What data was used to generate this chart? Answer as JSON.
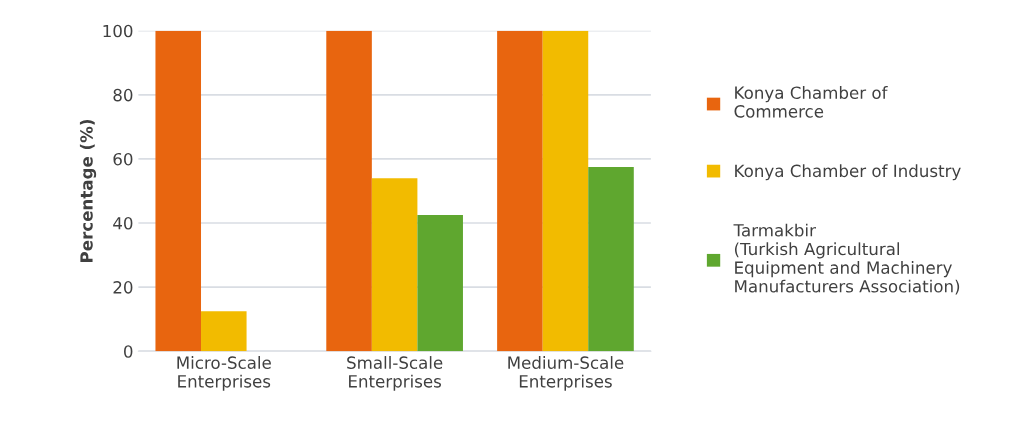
{
  "chart_data": {
    "type": "bar",
    "ylabel": "Percentage (%)",
    "categories": [
      "Micro-Scale\nEnterprises",
      "Small-Scale\nEnterprises",
      "Medium-Scale\nEnterprises"
    ],
    "series": [
      {
        "name": "Konya Chamber of\nCommerce",
        "color": "#e8650f",
        "values": [
          100,
          100,
          100
        ]
      },
      {
        "name": "Konya Chamber of Industry",
        "color": "#f2bb00",
        "values": [
          12.5,
          54,
          100
        ]
      },
      {
        "name": "Tarmakbir\n(Turkish Agricultural\nEquipment and Machinery\nManufacturers Association)",
        "color": "#5fa72f",
        "values": [
          null,
          42.5,
          57.5
        ]
      }
    ],
    "ylim": [
      0,
      100
    ],
    "yticks": [
      0,
      20,
      40,
      60,
      80,
      100
    ],
    "grid": "y",
    "legend": "right"
  }
}
